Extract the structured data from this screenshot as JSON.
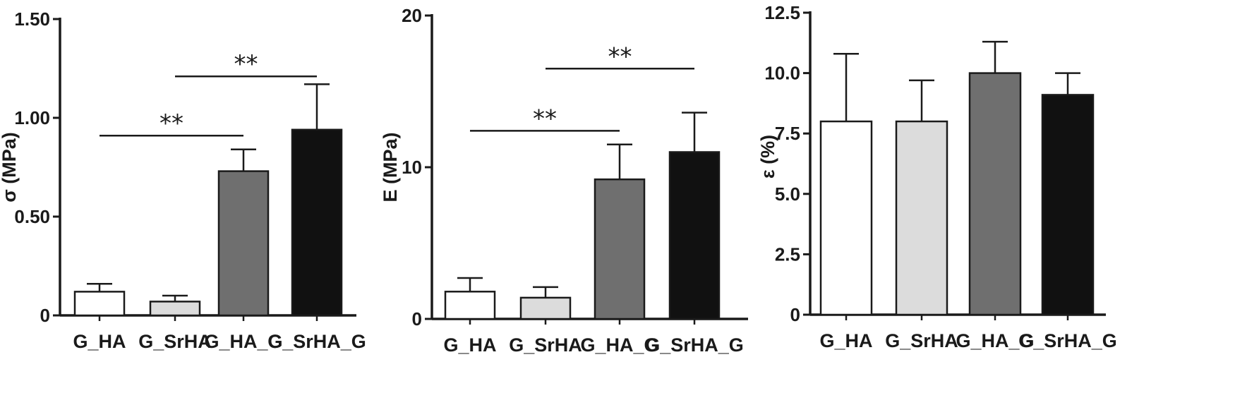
{
  "chart_data": [
    {
      "type": "bar",
      "ylabel": "σ (MPa)",
      "ylim": [
        0,
        1.5
      ],
      "yticks": [
        "0",
        "0.50",
        "1.00",
        "1.50"
      ],
      "categories": [
        "G_HA",
        "G_SrHA",
        "G_HA_G",
        "G_SrHA_G"
      ],
      "values": [
        0.12,
        0.07,
        0.73,
        0.94
      ],
      "errors": [
        0.04,
        0.03,
        0.11,
        0.23
      ],
      "colors": [
        "#ffffff",
        "#dcdcdc",
        "#6f6f6f",
        "#111111"
      ],
      "significance": [
        {
          "from": "G_HA",
          "to": "G_HA_G",
          "label": "**",
          "y": 0.91
        },
        {
          "from": "G_SrHA",
          "to": "G_SrHA_G",
          "label": "**",
          "y": 1.21
        }
      ]
    },
    {
      "type": "bar",
      "ylabel": "E (MPa)",
      "ylim": [
        0,
        20
      ],
      "yticks": [
        "0",
        "10",
        "20"
      ],
      "categories": [
        "G_HA",
        "G_SrHA",
        "G_HA_G",
        "G_SrHA_G"
      ],
      "values": [
        1.8,
        1.4,
        9.2,
        11.0
      ],
      "errors": [
        0.9,
        0.7,
        2.3,
        2.6
      ],
      "colors": [
        "#ffffff",
        "#dcdcdc",
        "#6f6f6f",
        "#111111"
      ],
      "significance": [
        {
          "from": "G_HA",
          "to": "G_HA_G",
          "label": "**",
          "y": 12.4
        },
        {
          "from": "G_SrHA",
          "to": "G_SrHA_G",
          "label": "**",
          "y": 16.5
        }
      ]
    },
    {
      "type": "bar",
      "ylabel": "ε (%)",
      "ylim": [
        0,
        12.5
      ],
      "yticks": [
        "0",
        "2.5",
        "5.0",
        "7.5",
        "10.0",
        "12.5"
      ],
      "categories": [
        "G_HA",
        "G_SrHA",
        "G_HA_G",
        "G_SrHA_G"
      ],
      "values": [
        8.0,
        8.0,
        10.0,
        9.1
      ],
      "errors": [
        2.8,
        1.7,
        1.3,
        0.9
      ],
      "colors": [
        "#ffffff",
        "#dcdcdc",
        "#6f6f6f",
        "#111111"
      ],
      "significance": []
    }
  ]
}
